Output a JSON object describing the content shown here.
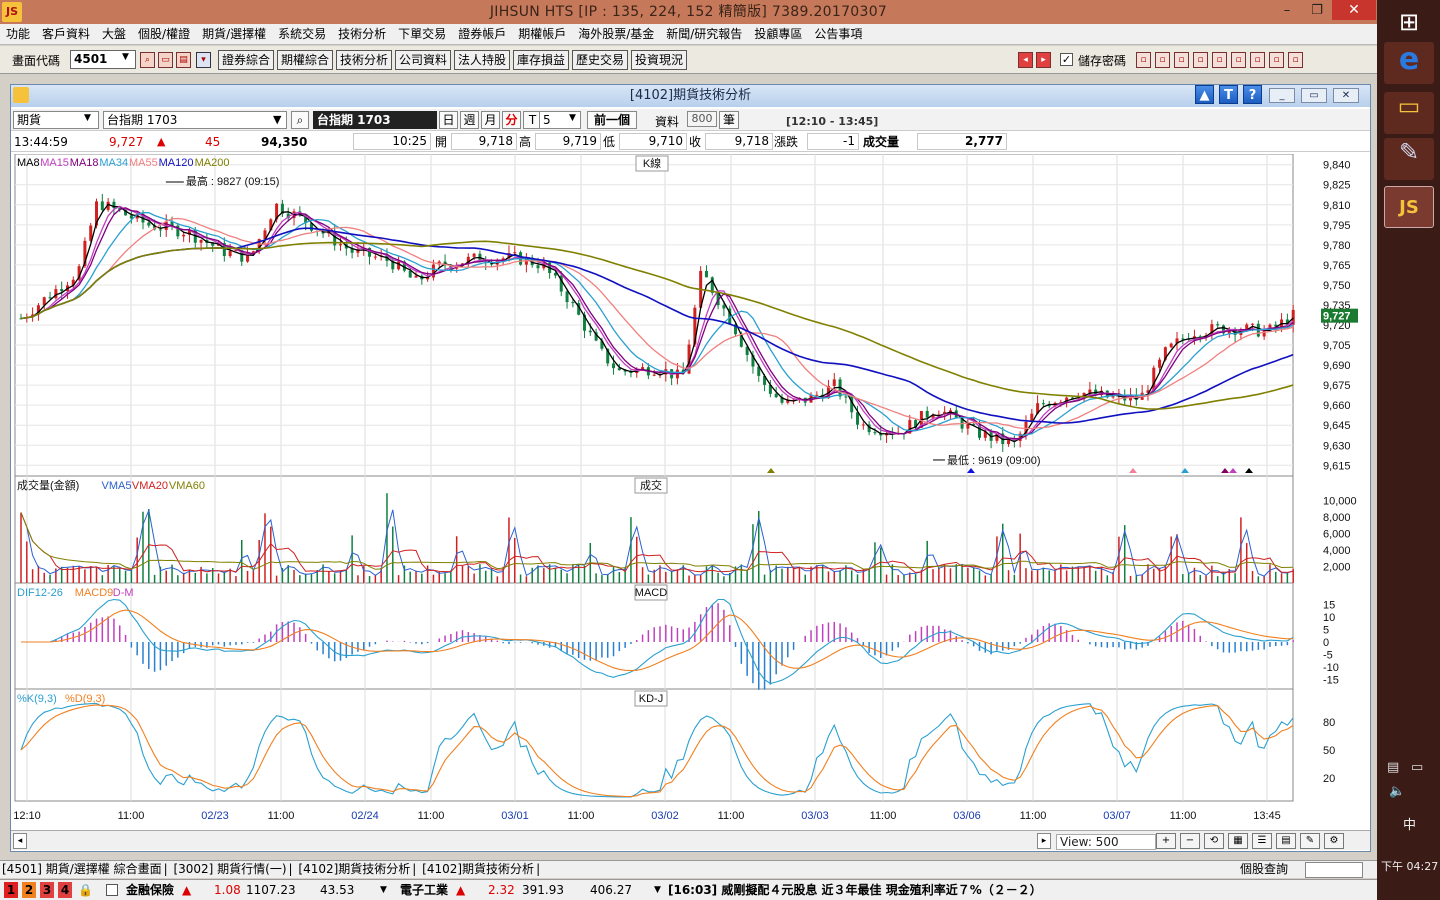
{
  "titlebar": {
    "title": "JIHSUN HTS      [IP : 135, 224, 152 精簡版] 7389.20170307",
    "min": "–",
    "restore": "❐",
    "close": "✕"
  },
  "menu": [
    "功能",
    "客戶資料",
    "大盤",
    "個股/權證",
    "期貨/選擇權",
    "系統交易",
    "技術分析",
    "下單交易",
    "證券帳戶",
    "期權帳戶",
    "海外股票/基金",
    "新聞/研究報告",
    "投顧專區",
    "公告事項"
  ],
  "toolbar": {
    "code_label": "畫面代碼",
    "code_value": "4501",
    "func_buttons": [
      "證券綜合",
      "期權綜合",
      "技術分析",
      "公司資料",
      "法人持股",
      "庫存損益",
      "歷史交易",
      "投資現況"
    ],
    "save_pw": "儲存密碼"
  },
  "window": {
    "title": "[4102]期貨技術分析",
    "ctrl": {
      "type": "期貨",
      "product": "台指期 1703",
      "product_name": "台指期 1703",
      "periods": [
        "日",
        "週",
        "月",
        "分",
        "T"
      ],
      "interval": "5",
      "prev": "前一個",
      "data_label": "資料",
      "data_count": "800",
      "unit": "筆",
      "time_range": "[12:10 - 13:45]"
    },
    "quote": {
      "time": "13:44:59",
      "price": "9,727",
      "change": "45",
      "amount": "94,350",
      "last_time": "10:25",
      "open_lbl": "開",
      "open": "9,718",
      "high_lbl": "高",
      "high": "9,719",
      "low_lbl": "低",
      "low": "9,710",
      "close_lbl": "收",
      "close": "9,718",
      "chg_lbl": "漲跌",
      "chg": "-1",
      "vol_lbl": "成交量",
      "vol": "2,777"
    }
  },
  "chart": {
    "k_legend": [
      "MA8",
      "MA15",
      "MA18",
      "MA34",
      "MA55",
      "MA120",
      "MA200"
    ],
    "k_title": "K線",
    "high_note": "最高 : 9827 (09:15)",
    "low_note": "最低 : 9619 (09:00)",
    "last_price": "9,727",
    "k_ticks": [
      "9,840",
      "9,825",
      "9,810",
      "9,795",
      "9,780",
      "9,765",
      "9,750",
      "9,735",
      "9,720",
      "9,705",
      "9,690",
      "9,675",
      "9,660",
      "9,645",
      "9,630",
      "9,615"
    ],
    "vol_legend": [
      "成交量(金額)",
      "VMA5",
      "VMA20",
      "VMA60"
    ],
    "vol_title": "成交",
    "vol_ticks": [
      "10,000",
      "8,000",
      "6,000",
      "4,000",
      "2,000"
    ],
    "macd_legend": [
      "DIF12-26",
      "MACD9",
      "D-M"
    ],
    "macd_title": "MACD",
    "macd_ticks": [
      "15",
      "10",
      "5",
      "0",
      "-5",
      "-10",
      "-15"
    ],
    "kd_legend": [
      "%K(9,3)",
      "%D(9,3)"
    ],
    "kd_title": "KD-J",
    "kd_ticks": [
      "80",
      "50",
      "20"
    ],
    "x_labels": [
      "12:10",
      "11:00",
      "02/23",
      "11:00",
      "02/24",
      "11:00",
      "03/01",
      "11:00",
      "03/02",
      "11:00",
      "03/03",
      "11:00",
      "03/06",
      "11:00",
      "03/07",
      "11:00",
      "13:45"
    ]
  },
  "colors": {
    "ma8": "#000000",
    "ma15": "#c040c0",
    "ma18": "#800080",
    "ma34": "#2aa0d0",
    "ma55": "#f08080",
    "ma120": "#1010c0",
    "ma200": "#808000",
    "up": "#d02020",
    "down": "#108040"
  },
  "bottom": {
    "view_label": "View: 500",
    "tabs": [
      "[4501] 期貨/選擇權 綜合畫面",
      "[3002] 期貨行情(一)",
      "[4102]期貨技術分析",
      "[4102]期貨技術分析"
    ],
    "stock_query": "個股查詢"
  },
  "ticker": {
    "nums": [
      "1",
      "2",
      "3",
      "4"
    ],
    "item1": "金融保險",
    "v1a": "1.08",
    "v1b": "1107.23",
    "v1c": "43.53",
    "item2": "電子工業",
    "v2a": "2.32",
    "v2b": "391.93",
    "v2c": "406.27",
    "news": "[16:03] 威剛擬配４元股息 近３年最佳 現金殖利率近７%（２－２）"
  },
  "taskbar": {
    "clock": "下午 04:27",
    "ime": "中"
  }
}
